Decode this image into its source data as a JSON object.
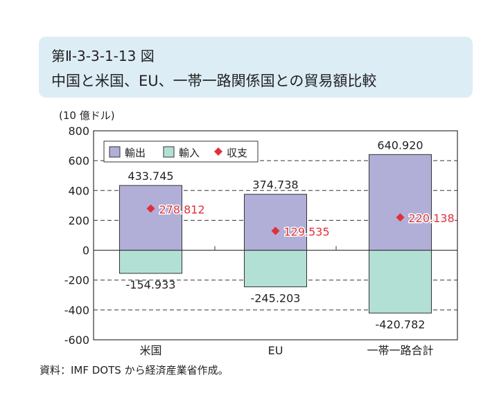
{
  "header": {
    "figure_number": "第Ⅱ-3-3-1-13 図",
    "title": "中国と米国、EU、一帯一路関係国との貿易額比較"
  },
  "source": "資料：IMF DOTS から経済産業省作成。",
  "chart_data": {
    "type": "bar",
    "unit_label": "(10 億ドル)",
    "categories": [
      "米国",
      "EU",
      "一帯一路合計"
    ],
    "ylim": [
      -600,
      800
    ],
    "yticks": [
      -600,
      -400,
      -200,
      0,
      200,
      400,
      600,
      800
    ],
    "grid": "dashed horizontal",
    "legend_position": "top-left",
    "series": [
      {
        "name": "輸出",
        "type": "bar",
        "color": "#b1afd8",
        "values": [
          433.745,
          374.738,
          640.92
        ],
        "labels": [
          "433.745",
          "374.738",
          "640.920"
        ]
      },
      {
        "name": "輸入",
        "type": "bar",
        "color": "#b3e0d5",
        "values": [
          -154.933,
          -245.203,
          -420.782
        ],
        "labels": [
          "-154.933",
          "-245.203",
          "-420.782"
        ]
      },
      {
        "name": "収支",
        "type": "scatter",
        "marker": "diamond",
        "color": "#e0303a",
        "values": [
          278.812,
          129.535,
          220.138
        ],
        "labels": [
          "278.812",
          "129.535",
          "220.138"
        ]
      }
    ]
  }
}
